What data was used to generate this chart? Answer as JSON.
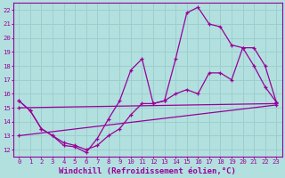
{
  "background_color": "#b2e0df",
  "grid_color": "#9dcece",
  "line_color": "#990099",
  "xlabel": "Windchill (Refroidissement éolien,°C)",
  "xlabel_fontsize": 6.5,
  "xtick_labels": [
    "0",
    "1",
    "2",
    "3",
    "4",
    "5",
    "6",
    "7",
    "8",
    "9",
    "10",
    "11",
    "12",
    "13",
    "14",
    "15",
    "16",
    "17",
    "18",
    "19",
    "20",
    "21",
    "22",
    "23"
  ],
  "ytick_labels": [
    "12",
    "13",
    "14",
    "15",
    "16",
    "17",
    "18",
    "19",
    "20",
    "21",
    "22"
  ],
  "xlim": [
    -0.5,
    23.5
  ],
  "ylim": [
    11.5,
    22.5
  ],
  "line1_x": [
    0,
    1,
    2,
    3,
    4,
    5,
    6,
    7,
    8,
    9,
    10,
    11,
    12,
    13,
    14,
    15,
    16,
    17,
    18,
    19,
    20,
    21,
    22,
    23
  ],
  "line1_y": [
    15.5,
    14.8,
    13.5,
    13.0,
    12.3,
    12.2,
    11.8,
    12.8,
    14.2,
    15.5,
    17.7,
    18.5,
    15.3,
    15.5,
    18.5,
    21.8,
    22.2,
    21.0,
    20.8,
    19.5,
    19.3,
    18.0,
    16.5,
    15.4
  ],
  "line2_x": [
    0,
    1,
    2,
    3,
    4,
    5,
    6,
    7,
    8,
    9,
    10,
    11,
    12,
    13,
    14,
    15,
    16,
    17,
    18,
    19,
    20,
    21,
    22,
    23
  ],
  "line2_y": [
    15.5,
    14.8,
    13.5,
    13.0,
    12.5,
    12.3,
    12.0,
    12.3,
    13.0,
    13.5,
    14.5,
    15.3,
    15.3,
    15.5,
    16.0,
    16.3,
    16.0,
    17.5,
    17.5,
    17.0,
    19.3,
    19.3,
    18.0,
    15.4
  ],
  "line3_x": [
    0,
    23
  ],
  "line3_y": [
    15.0,
    15.3
  ],
  "line4_x": [
    0,
    23
  ],
  "line4_y": [
    13.0,
    15.2
  ]
}
